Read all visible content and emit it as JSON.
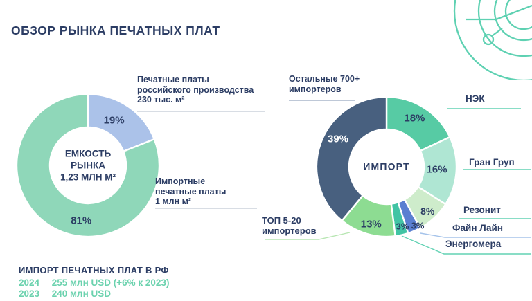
{
  "page": {
    "title": "ОБЗОР РЫНКА ПЕЧАТНЫХ ПЛАТ"
  },
  "colors": {
    "navy": "#2c3d64",
    "teal_accent": "#62d2b4",
    "mint_text": "#6bd2ae",
    "grey_line": "#ccd2dc",
    "bluegrey_line": "#a9b6ca",
    "lightblue_line": "#a5c3ea",
    "lightgreen_line": "#b7e6b2"
  },
  "left_chart": {
    "center": {
      "line1": "ЕМКОСТЬ",
      "line2": "РЫНКА",
      "line3": "1,23 МЛН М²"
    },
    "annotation_domestic": {
      "line1": "Печатные платы",
      "line2": "российского производства",
      "line3": "230 тыс. м²"
    },
    "annotation_import": {
      "line1": "Импортные",
      "line2": "печатные платы",
      "line3": "1 млн м²"
    }
  },
  "right_chart": {
    "center": "ИМПОРТ",
    "label_others": {
      "line1": "Остальные 700+",
      "line2": "импортеров"
    },
    "label_nek": "НЭК",
    "label_gran_grup": "Гран Груп",
    "label_rezonit": "Резонит",
    "label_fine_line": "Файн Лайн",
    "label_energomera": "Энергомера",
    "label_top520": {
      "line1": "ТОП 5-20",
      "line2": "импортеров"
    }
  },
  "footer": {
    "title": "ИМПОРТ ПЕЧАТНЫХ ПЛАТ В РФ",
    "rows": [
      {
        "year": "2024",
        "value": "255 млн USD (+6% к 2023)"
      },
      {
        "year": "2023",
        "value": "240 млн USD"
      }
    ]
  },
  "chart_data": [
    {
      "type": "pie",
      "variant": "donut",
      "title": "ЕМКОСТЬ РЫНКА 1,23 МЛН М²",
      "start_angle_deg": 0,
      "clockwise": true,
      "outer_r": 103,
      "inner_r": 55,
      "slices": [
        {
          "id": "domestic",
          "name": "Печатные платы российского производства",
          "value_pct": 19,
          "amount": "230 тыс. м²",
          "color": "#abc2e9",
          "label": "19%",
          "label_at": 30,
          "label_r": 0.73,
          "label_size": 15
        },
        {
          "id": "imported",
          "name": "Импортные печатные платы",
          "value_pct": 81,
          "amount": "1 млн м²",
          "color": "#8fd7b9",
          "label": "81%",
          "label_at": 187,
          "label_r": 0.78,
          "label_size": 15
        }
      ]
    },
    {
      "type": "pie",
      "variant": "donut",
      "title": "ИМПОРТ",
      "start_angle_deg": 0,
      "clockwise": true,
      "outer_r": 101,
      "inner_r": 54,
      "slices": [
        {
          "id": "nek",
          "name": "НЭК",
          "value_pct": 18,
          "color": "#57cba4",
          "label": "18%",
          "label_at": 30,
          "label_r": 0.8,
          "label_size": 15
        },
        {
          "id": "gran-grup",
          "name": "Гран Груп",
          "value_pct": 16,
          "color": "#afe6d3",
          "label": "16%",
          "label_at": 93,
          "label_r": 0.72,
          "label_size": 15
        },
        {
          "id": "rezonit",
          "name": "Резонит",
          "value_pct": 8,
          "color": "#ceeccb",
          "label": "8%",
          "label_at": 137,
          "label_r": 0.86,
          "label_size": 14
        },
        {
          "id": "fine-line",
          "name": "Файн Лайн",
          "value_pct": 3,
          "color": "#5a7fd1",
          "label": "3%",
          "label_at": 152,
          "label_r": 0.95,
          "label_size": 13
        },
        {
          "id": "energomera",
          "name": "Энергомера",
          "value_pct": 3,
          "color": "#41c4a4",
          "label": "3%",
          "label_at": 165,
          "label_r": 0.88,
          "label_size": 13
        },
        {
          "id": "top-5-20",
          "name": "ТОП 5-20 импортеров",
          "value_pct": 13,
          "color": "#8ddc92",
          "label": "13%",
          "label_at": 195,
          "label_r": 0.85,
          "label_size": 15
        },
        {
          "id": "others",
          "name": "Остальные 700+ импортеров",
          "value_pct": 39,
          "color": "#48607f",
          "label": "39%",
          "label_at": 300,
          "label_r": 0.8,
          "label_size": 15,
          "label_color": "#ffffff"
        }
      ]
    }
  ]
}
